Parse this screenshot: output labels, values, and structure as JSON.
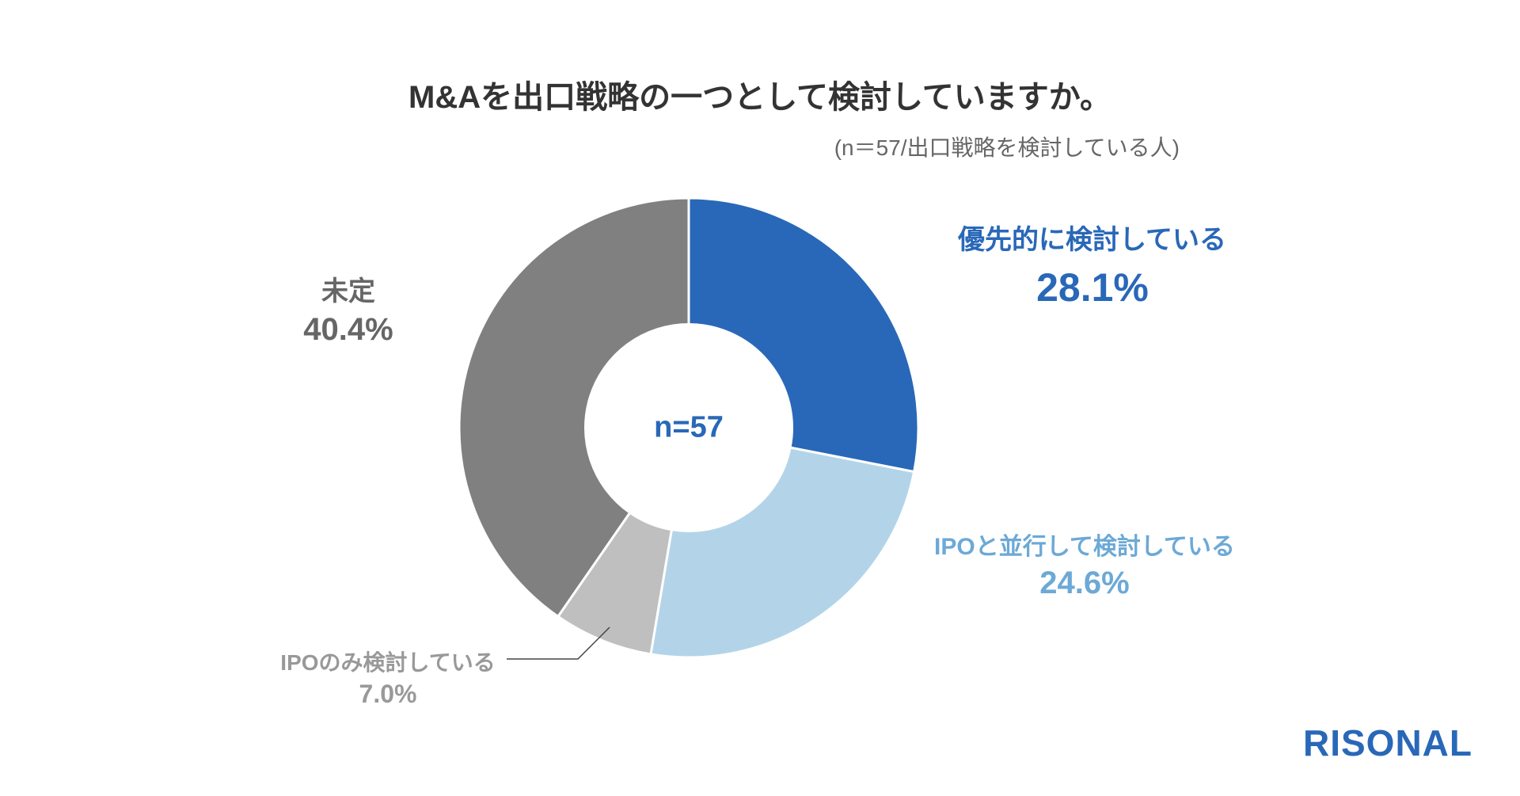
{
  "chart": {
    "title": "M&Aを出口戦略の一つとして検討していますか。",
    "subtitle": "(n＝57/出口戦略を検討している人)",
    "center_label": "n=57",
    "center_color": "#2968b8",
    "type": "donut",
    "inner_radius_ratio": 0.45,
    "background_color": "#ffffff",
    "slices": [
      {
        "label": "優先的に検討している",
        "value": 28.1,
        "percent_text": "28.1%",
        "color": "#2968b8",
        "label_color": "#2968b8",
        "label_fontsize": 34,
        "value_fontsize": 50
      },
      {
        "label": "IPOと並行して検討している",
        "value": 24.6,
        "percent_text": "24.6%",
        "color": "#b3d4e8",
        "label_color": "#6ca9d6",
        "label_fontsize": 30,
        "value_fontsize": 40
      },
      {
        "label": "IPOのみ検討している",
        "value": 7.0,
        "percent_text": "7.0%",
        "color": "#bfbfbf",
        "label_color": "#999999",
        "label_fontsize": 28,
        "value_fontsize": 32,
        "has_leader_line": true
      },
      {
        "label": "未定",
        "value": 40.4,
        "percent_text": "40.4%",
        "color": "#808080",
        "label_color": "#666666",
        "label_fontsize": 34,
        "value_fontsize": 40
      }
    ],
    "title_fontsize": 40,
    "title_color": "#333333",
    "subtitle_fontsize": 28,
    "subtitle_color": "#666666",
    "slice_gap_color": "#ffffff",
    "slice_gap_width": 3
  },
  "brand": {
    "name": "RISONAL",
    "color": "#2968b8",
    "fontsize": 46
  }
}
